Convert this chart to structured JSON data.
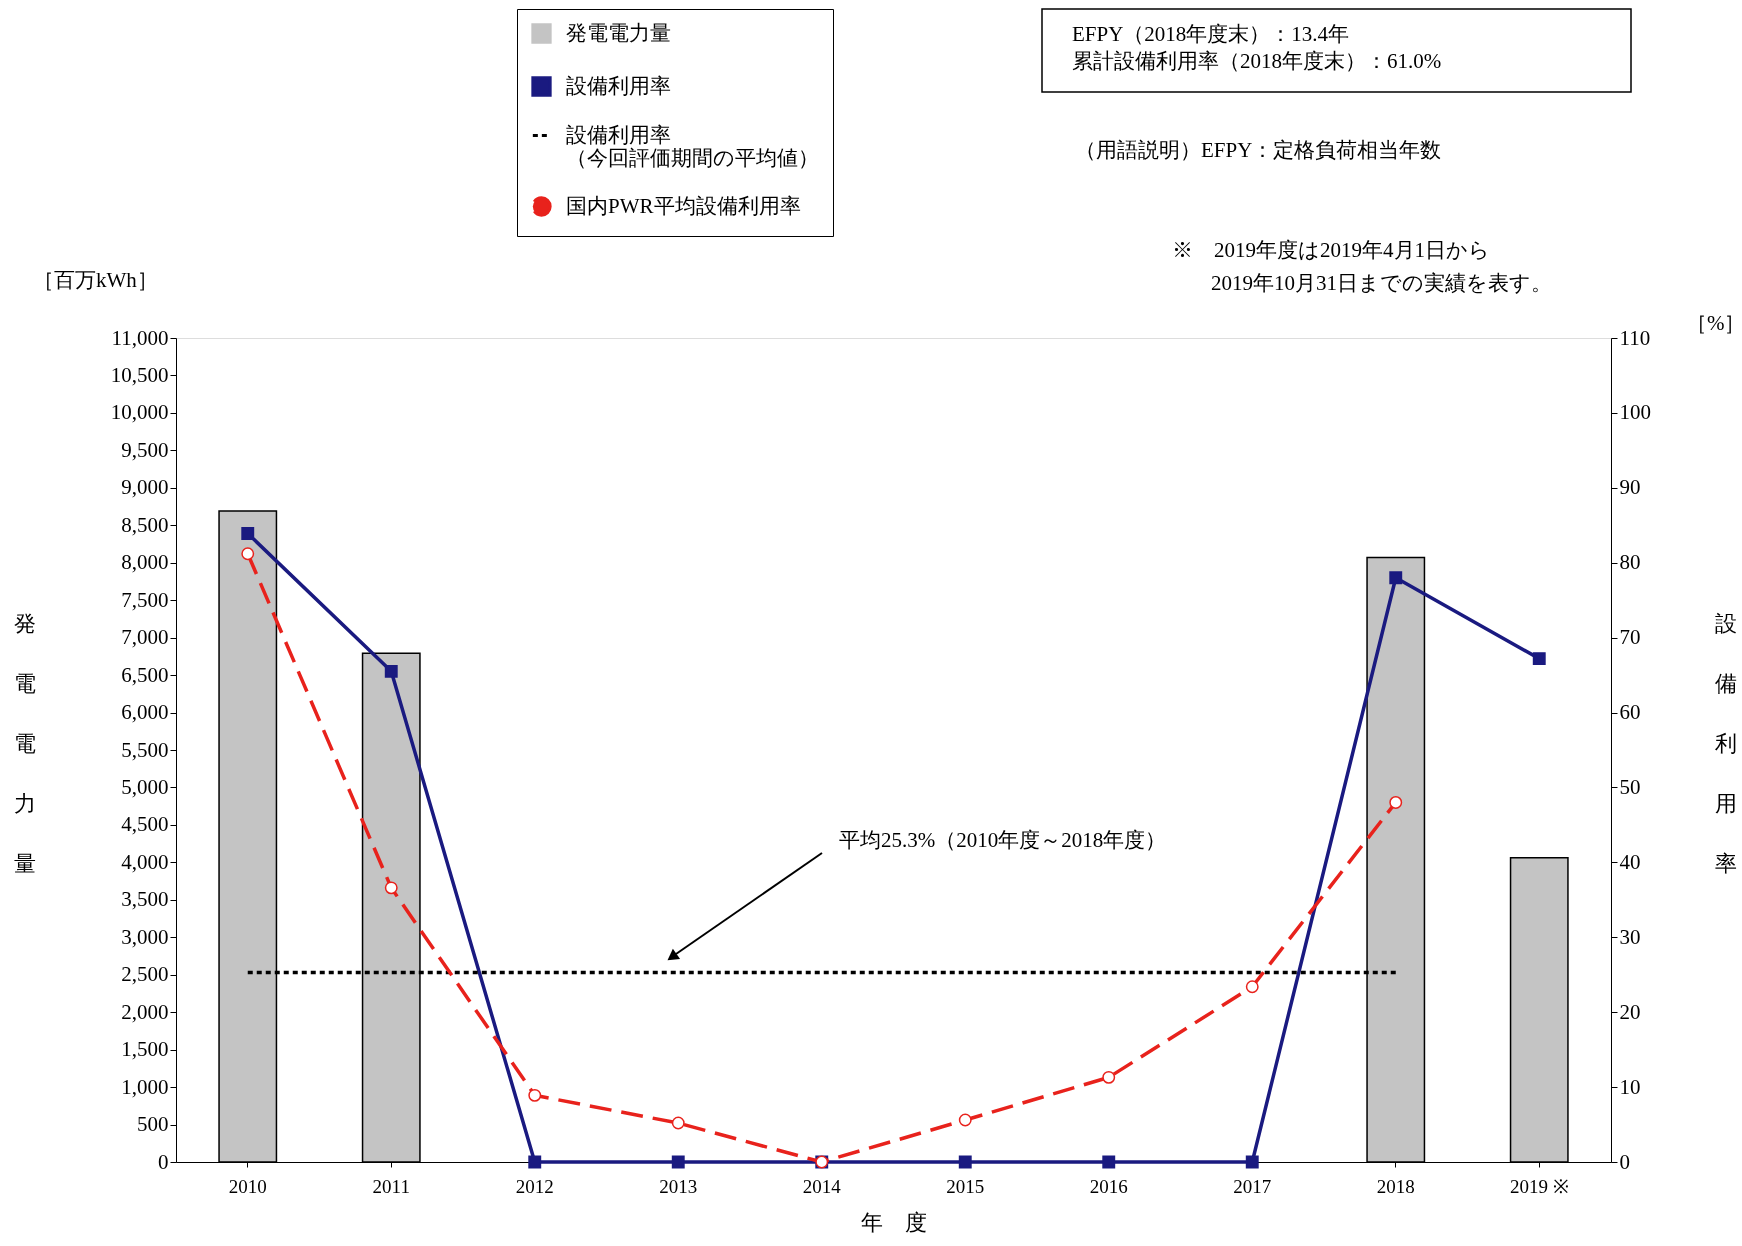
{
  "chart_data": {
    "type": "bar",
    "xlabel": "年　度",
    "ylabel": "発電電力量",
    "y2label": "設備利用率",
    "categories": [
      "2010",
      "2011",
      "2012",
      "2013",
      "2014",
      "2015",
      "2016",
      "2017",
      "2018",
      "2019 ※"
    ],
    "series": [
      {
        "name": "発電電力量",
        "color": "#c4c4c4",
        "values": [
          8690,
          6790,
          null,
          null,
          null,
          null,
          null,
          null,
          8070,
          4060
        ]
      },
      {
        "name": "設備利用率",
        "type": "line",
        "axis": "y2",
        "color": "#1a1a80",
        "marker": "square",
        "line_style": "solid",
        "values": [
          83.9,
          65.5,
          0,
          0,
          0,
          0,
          0,
          0,
          78.0,
          67.2
        ]
      },
      {
        "name": "設備利用率（今回評価期間の平均値）",
        "type": "line",
        "axis": "y2",
        "color": "#000000",
        "marker": "none",
        "line_style": "dotted",
        "values": [
          25.3,
          25.3,
          25.3,
          25.3,
          25.3,
          25.3,
          25.3,
          25.3,
          25.3,
          null
        ]
      },
      {
        "name": "国内PWR平均設備利用率",
        "type": "line",
        "axis": "y2",
        "color": "#e8221c",
        "marker": "circle",
        "line_style": "dashed",
        "values": [
          81.2,
          36.6,
          8.9,
          5.2,
          0,
          5.6,
          11.3,
          23.4,
          48.0,
          null
        ]
      }
    ],
    "ylim": [
      0,
      11000
    ],
    "yticks": [
      0,
      500,
      {
        "value": 1000,
        "label": "1,000"
      },
      {
        "value": 1500,
        "label": "1,500"
      },
      {
        "value": 2000,
        "label": "2,000"
      },
      {
        "value": 2500,
        "label": "2,500"
      },
      {
        "value": 3000,
        "label": "3,000"
      },
      {
        "value": 3500,
        "label": "3,500"
      },
      {
        "value": 4000,
        "label": "4,000"
      },
      {
        "value": 4500,
        "label": "4,500"
      },
      {
        "value": 5000,
        "label": "5,000"
      },
      {
        "value": 5500,
        "label": "5,500"
      },
      {
        "value": 6000,
        "label": "6,000"
      },
      {
        "value": 6500,
        "label": "6,500"
      },
      {
        "value": 7000,
        "label": "7,000"
      },
      {
        "value": 7500,
        "label": "7,500"
      },
      {
        "value": 8000,
        "label": "8,000"
      },
      {
        "value": 8500,
        "label": "8,500"
      },
      {
        "value": 9000,
        "label": "9,000"
      },
      {
        "value": 9500,
        "label": "9,500"
      },
      {
        "value": 10000,
        "label": "10,000"
      },
      {
        "value": 10500,
        "label": "10,500"
      },
      {
        "value": 11000,
        "label": "11,000"
      }
    ],
    "y2lim": [
      0,
      110
    ],
    "y2ticks": [
      0,
      10,
      20,
      30,
      40,
      50,
      60,
      70,
      80,
      90,
      100,
      110
    ],
    "grid": false,
    "legend": "top",
    "annotations": [
      "平均25.3%（2010年度～2018年度）",
      "EFPY（2018年度末）：13.4年",
      "累計設備利用率（2018年度末）：61.0%",
      "（用語説明）EFPY：定格負荷相当年数",
      "※　2019年度は2019年4月1日から",
      "2019年10月31日までの実績を表す。",
      "［百万kWh］",
      "［%］"
    ]
  }
}
